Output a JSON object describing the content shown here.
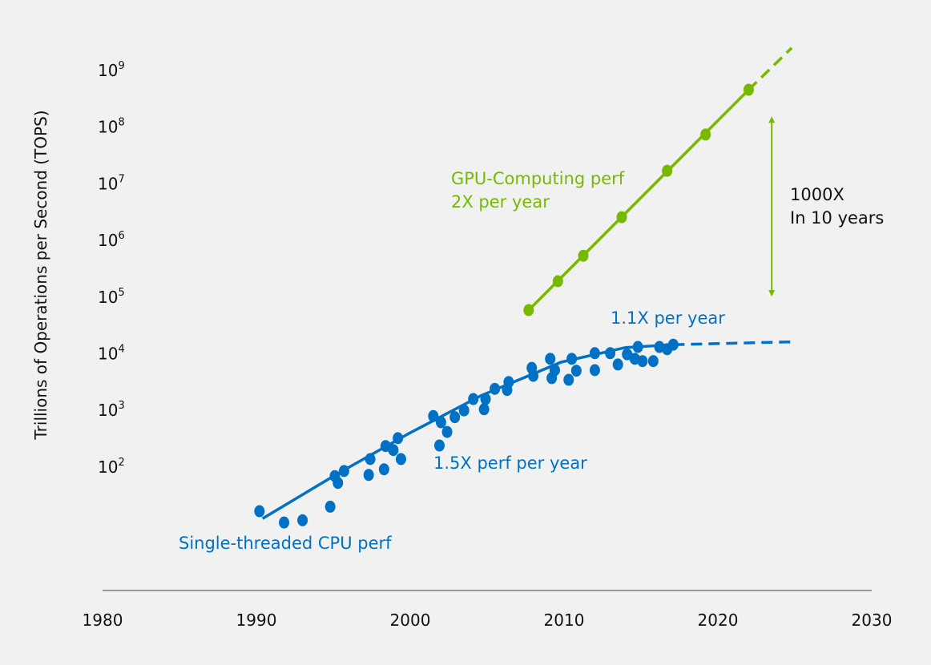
{
  "chart_data": {
    "type": "scatter",
    "title": "",
    "xlabel": "",
    "ylabel": "Trillions of Operations per Second (TOPS)",
    "x_ticks": [
      "1980",
      "1990",
      "2000",
      "2010",
      "2020",
      "2030"
    ],
    "xlim": [
      1980,
      2030
    ],
    "y_scale": "log",
    "y_ticks_exponents": [
      2,
      3,
      4,
      5,
      6,
      7,
      8,
      9
    ],
    "y_tick_base": "10",
    "ylim_log10": [
      0.3,
      9.4
    ],
    "grid": false,
    "colors": {
      "gpu": "#76b900",
      "cpu": "#0071c5",
      "axis": "#999999",
      "background": "#f1f1f1"
    },
    "series": [
      {
        "name": "GPU-Computing perf",
        "color": "#76b900",
        "points_year_log10": [
          [
            2007.7,
            4.77
          ],
          [
            2009.6,
            5.28
          ],
          [
            2011.25,
            5.73
          ],
          [
            2013.75,
            6.41
          ],
          [
            2016.7,
            7.23
          ],
          [
            2019.2,
            7.87
          ],
          [
            2022.0,
            8.66
          ]
        ],
        "trend_solid": [
          [
            2007.7,
            4.77
          ],
          [
            2022.0,
            8.66
          ]
        ],
        "trend_dashed": [
          [
            2022.0,
            8.66
          ],
          [
            2024.8,
            9.4
          ]
        ]
      },
      {
        "name": "Single-threaded CPU perf",
        "color": "#0071c5",
        "points_year_log10": [
          [
            1990.2,
            1.22
          ],
          [
            1991.8,
            1.02
          ],
          [
            1993.0,
            1.06
          ],
          [
            1994.8,
            1.3
          ],
          [
            1995.1,
            1.84
          ],
          [
            1995.3,
            1.72
          ],
          [
            1995.7,
            1.93
          ],
          [
            1997.3,
            1.86
          ],
          [
            1997.4,
            2.14
          ],
          [
            1998.3,
            1.96
          ],
          [
            1998.4,
            2.37
          ],
          [
            1998.9,
            2.3
          ],
          [
            1999.2,
            2.51
          ],
          [
            1999.4,
            2.14
          ],
          [
            2001.5,
            2.9
          ],
          [
            2001.9,
            2.38
          ],
          [
            2002.0,
            2.79
          ],
          [
            2002.4,
            2.62
          ],
          [
            2002.9,
            2.88
          ],
          [
            2003.5,
            3.0
          ],
          [
            2004.1,
            3.2
          ],
          [
            2004.8,
            3.02
          ],
          [
            2004.9,
            3.2
          ],
          [
            2005.5,
            3.38
          ],
          [
            2006.3,
            3.36
          ],
          [
            2006.4,
            3.5
          ],
          [
            2007.9,
            3.75
          ],
          [
            2008.0,
            3.61
          ],
          [
            2009.1,
            3.91
          ],
          [
            2009.2,
            3.57
          ],
          [
            2009.4,
            3.71
          ],
          [
            2010.3,
            3.54
          ],
          [
            2010.5,
            3.91
          ],
          [
            2010.8,
            3.7
          ],
          [
            2012.0,
            4.01
          ],
          [
            2012.0,
            3.71
          ],
          [
            2013.0,
            4.01
          ],
          [
            2013.5,
            3.81
          ],
          [
            2014.1,
            3.99
          ],
          [
            2014.6,
            3.91
          ],
          [
            2014.8,
            4.12
          ],
          [
            2015.1,
            3.87
          ],
          [
            2015.8,
            3.87
          ],
          [
            2016.2,
            4.12
          ],
          [
            2016.7,
            4.08
          ],
          [
            2017.1,
            4.16
          ]
        ],
        "trend_solid": [
          [
            1990.4,
            1.09
          ],
          [
            1995.2,
            1.87
          ],
          [
            1999.9,
            2.59
          ],
          [
            2004.6,
            3.26
          ],
          [
            2009.8,
            3.85
          ],
          [
            2014.0,
            4.11
          ],
          [
            2017.1,
            4.16
          ]
        ],
        "trend_dashed": [
          [
            2017.1,
            4.16
          ],
          [
            2024.8,
            4.21
          ]
        ]
      }
    ],
    "annotations": {
      "gpu_label_1": "GPU-Computing perf",
      "gpu_label_2": "2X per year",
      "cpu_label": "Single-threaded CPU perf",
      "cpu_rate_early": "1.5X perf per year",
      "cpu_rate_late": "1.1X per year",
      "gap_label_1": "1000X",
      "gap_label_2": "In 10 years",
      "gap_arrow_year": 2023.5,
      "gap_arrow_log10": [
        5.01,
        8.19
      ]
    }
  }
}
